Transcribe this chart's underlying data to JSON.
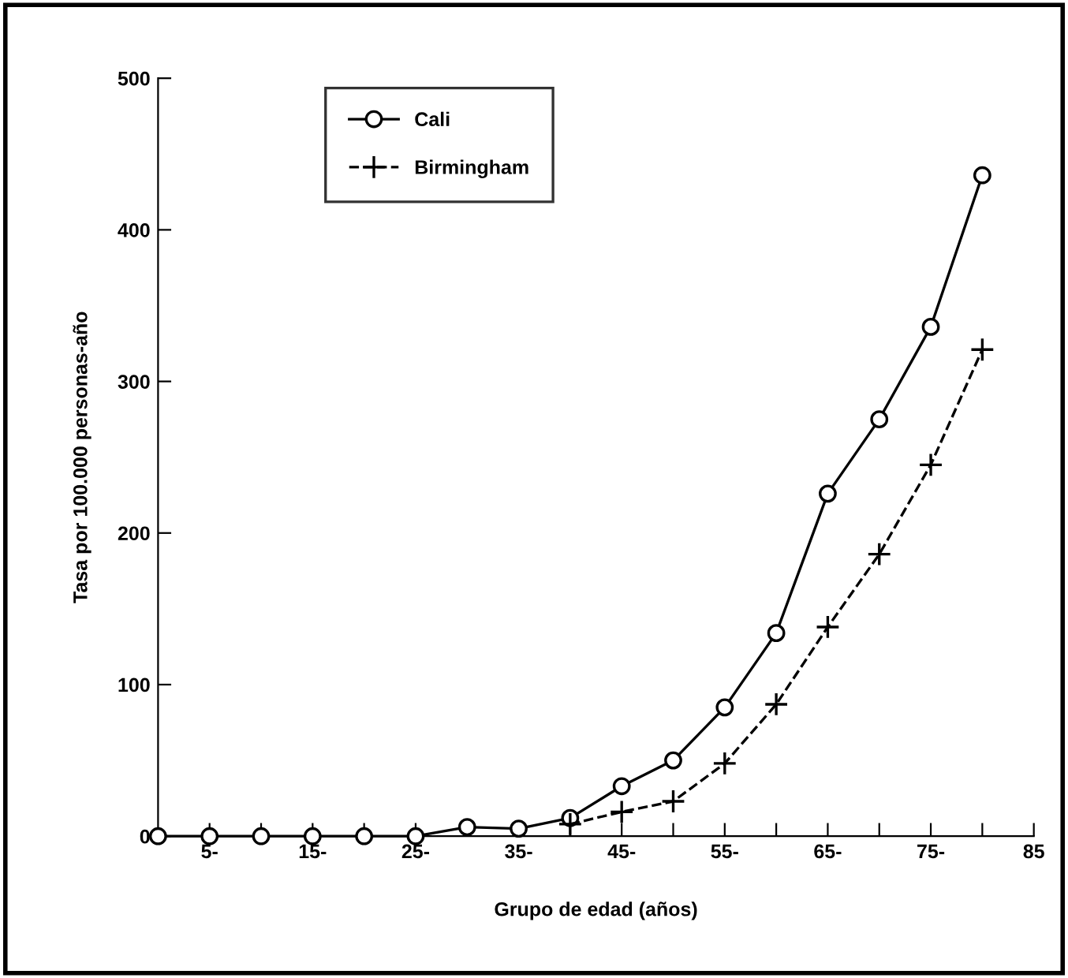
{
  "chart_data": {
    "type": "line",
    "xlabel": "Grupo de edad (años)",
    "ylabel": "Tasa por 100.000 personas-año",
    "xlim": [
      0,
      85
    ],
    "ylim": [
      0,
      500
    ],
    "xticks": [
      {
        "value": 5,
        "label": "5-"
      },
      {
        "value": 10,
        "label": null
      },
      {
        "value": 15,
        "label": "15-"
      },
      {
        "value": 20,
        "label": null
      },
      {
        "value": 25,
        "label": "25-"
      },
      {
        "value": 30,
        "label": null
      },
      {
        "value": 35,
        "label": "35-"
      },
      {
        "value": 40,
        "label": null
      },
      {
        "value": 45,
        "label": "45-"
      },
      {
        "value": 50,
        "label": null
      },
      {
        "value": 55,
        "label": "55-"
      },
      {
        "value": 60,
        "label": null
      },
      {
        "value": 65,
        "label": "65-"
      },
      {
        "value": 70,
        "label": null
      },
      {
        "value": 75,
        "label": "75-"
      },
      {
        "value": 80,
        "label": null
      },
      {
        "value": 85,
        "label": "85"
      }
    ],
    "yticks": [
      0,
      100,
      200,
      300,
      400,
      500
    ],
    "grid": false,
    "legend": "top left",
    "series": [
      {
        "name": "Cali",
        "color": "#000000",
        "marker": "circle",
        "line_style": "solid",
        "x": [
          0,
          5,
          10,
          15,
          20,
          25,
          30,
          35,
          40,
          45,
          50,
          55,
          60,
          65,
          70,
          75,
          80
        ],
        "values": [
          0,
          0,
          0,
          0,
          0,
          0,
          6,
          5,
          12,
          33,
          50,
          85,
          134,
          226,
          275,
          336,
          436
        ]
      },
      {
        "name": "Birmingham",
        "color": "#000000",
        "marker": "cross",
        "line_style": "dashed",
        "x": [
          40,
          45,
          50,
          55,
          60,
          65,
          70,
          75,
          80
        ],
        "values": [
          8,
          16,
          23,
          48,
          87,
          138,
          186,
          245,
          321
        ]
      }
    ]
  }
}
